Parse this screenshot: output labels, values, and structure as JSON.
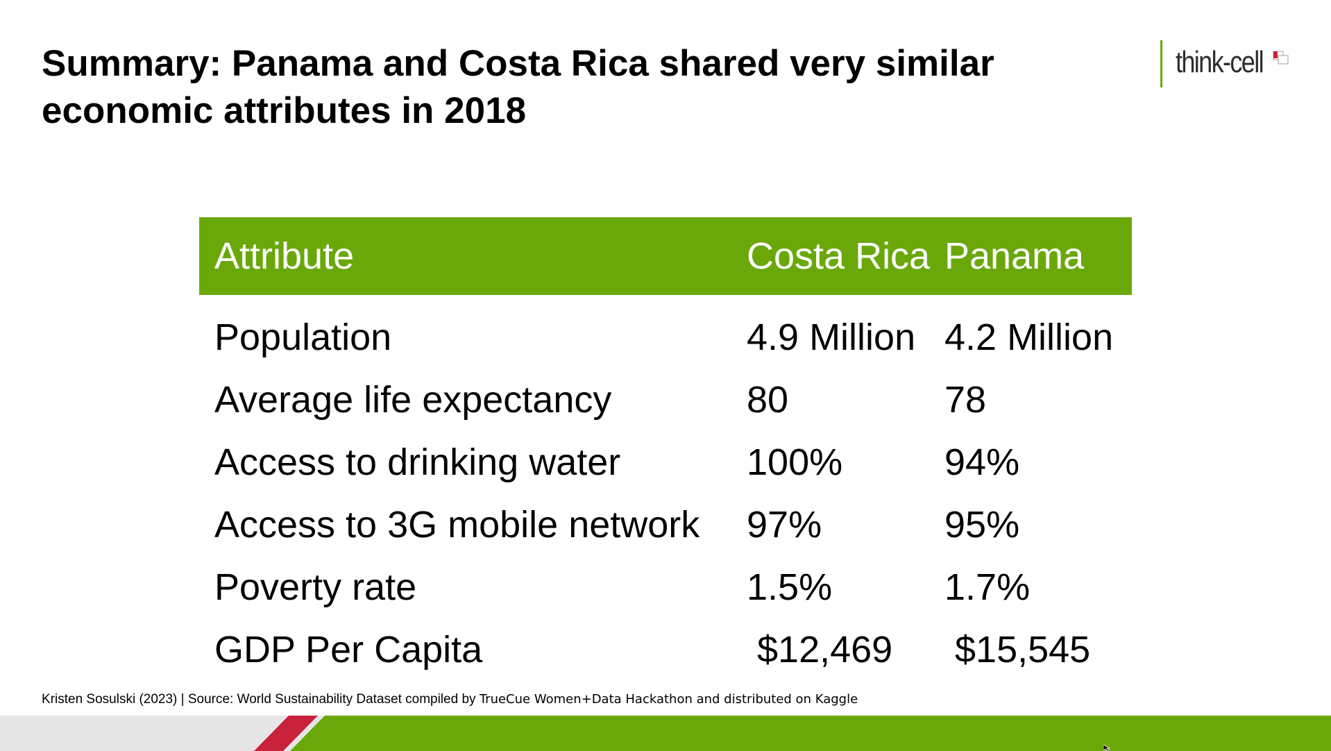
{
  "title": "Summary: Panama and Costa Rica shared very similar economic attributes in 2018",
  "logo": {
    "text": "think-cell"
  },
  "table": {
    "headers": [
      "Attribute",
      "Costa Rica",
      "Panama"
    ],
    "rows": [
      [
        "Population",
        "4.9 Million",
        "4.2 Million"
      ],
      [
        "Average life expectancy",
        "80",
        "78"
      ],
      [
        "Access to drinking water",
        "100%",
        "94%"
      ],
      [
        "Access to 3G mobile network",
        "97%",
        "95%"
      ],
      [
        "Poverty rate",
        "1.5%",
        "1.7%"
      ],
      [
        "GDP Per Capita",
        " $12,469",
        " $15,545"
      ]
    ]
  },
  "footer": {
    "source_part1": "Kristen Sosulski (2023) | Source: World Sustainability Dataset compiled by ",
    "source_part2": "TrueCue Women+Data Hackathon and distributed on Kaggle"
  },
  "colors": {
    "accent_green": "#6aa80a",
    "accent_red": "#c8213a",
    "footer_grey": "#e6e6e6"
  }
}
